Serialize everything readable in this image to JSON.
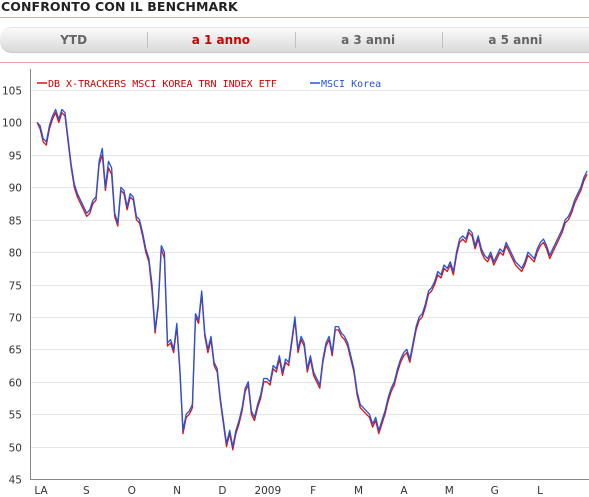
{
  "header": {
    "title": "CONFRONTO CON IL BENCHMARK"
  },
  "tabs": [
    {
      "label": "YTD",
      "active": false
    },
    {
      "label": "a 1 anno",
      "active": true
    },
    {
      "label": "a 3 anni",
      "active": false
    },
    {
      "label": "a 5 anni",
      "active": false
    }
  ],
  "colors": {
    "accent": "#cc0000",
    "etf": "#dd1111",
    "benchmark": "#2255dd"
  },
  "chart_data": {
    "type": "line",
    "title": "",
    "xlabel": "",
    "ylabel": "",
    "ylim": [
      45,
      105
    ],
    "yticks": [
      45,
      50,
      55,
      60,
      65,
      70,
      75,
      80,
      85,
      90,
      95,
      100,
      105
    ],
    "grid": true,
    "legend": "top-left",
    "xtick_labels": [
      "LA",
      "S",
      "O",
      "N",
      "D",
      "2009",
      "F",
      "M",
      "A",
      "M",
      "G",
      "L"
    ],
    "series": [
      {
        "name": "DB X-TRACKERS MSCI KOREA TRN INDEX ETF",
        "color": "#dd1111",
        "values": [
          100.0,
          99.0,
          97.0,
          96.5,
          99.0,
          100.5,
          101.5,
          100.0,
          101.5,
          101.0,
          97.0,
          93.0,
          90.0,
          88.5,
          87.5,
          86.5,
          85.5,
          86.0,
          87.5,
          88.0,
          93.5,
          95.0,
          89.5,
          93.0,
          92.0,
          85.5,
          84.0,
          89.5,
          89.0,
          86.5,
          88.5,
          88.0,
          85.0,
          84.5,
          82.5,
          80.0,
          78.5,
          74.0,
          67.5,
          71.5,
          80.5,
          79.0,
          65.5,
          66.0,
          64.5,
          68.5,
          61.5,
          52.0,
          54.5,
          55.0,
          56.0,
          70.0,
          69.0,
          73.5,
          67.0,
          64.5,
          66.5,
          62.5,
          61.5,
          57.0,
          53.5,
          50.0,
          52.0,
          49.5,
          52.0,
          53.5,
          55.5,
          58.5,
          59.5,
          55.0,
          54.0,
          56.0,
          57.5,
          60.0,
          60.0,
          59.5,
          62.0,
          61.5,
          63.5,
          61.0,
          63.0,
          62.5,
          66.0,
          69.5,
          64.5,
          66.5,
          65.5,
          61.5,
          63.5,
          61.0,
          60.0,
          59.0,
          63.0,
          65.5,
          66.5,
          64.0,
          68.0,
          68.0,
          67.0,
          66.5,
          65.5,
          63.5,
          61.5,
          58.0,
          56.0,
          55.5,
          55.0,
          54.5,
          53.0,
          54.0,
          52.0,
          53.5,
          55.0,
          57.0,
          58.5,
          59.5,
          61.5,
          63.0,
          64.0,
          64.5,
          63.0,
          65.5,
          68.0,
          69.5,
          70.0,
          71.5,
          73.5,
          74.0,
          75.0,
          76.5,
          76.0,
          77.5,
          77.0,
          78.0,
          76.5,
          79.5,
          81.5,
          82.0,
          81.5,
          83.0,
          82.5,
          80.5,
          82.0,
          80.0,
          79.0,
          78.5,
          79.5,
          78.0,
          79.0,
          80.0,
          79.5,
          81.0,
          80.0,
          79.0,
          78.0,
          77.5,
          77.0,
          78.0,
          79.5,
          79.0,
          78.5,
          80.0,
          81.0,
          81.5,
          80.5,
          79.0,
          80.0,
          81.0,
          82.0,
          83.0,
          84.5,
          85.0,
          86.0,
          87.5,
          88.5,
          89.5,
          91.0,
          92.0
        ]
      },
      {
        "name": "MSCI Korea",
        "color": "#2255dd",
        "values": [
          100.0,
          99.5,
          97.5,
          97.0,
          99.5,
          101.0,
          102.0,
          100.5,
          102.0,
          101.5,
          97.5,
          93.5,
          90.5,
          89.0,
          88.0,
          87.0,
          86.0,
          86.5,
          88.0,
          88.5,
          94.0,
          96.0,
          90.0,
          94.0,
          93.0,
          86.0,
          84.5,
          90.0,
          89.5,
          87.0,
          89.0,
          88.5,
          85.5,
          85.0,
          83.0,
          80.5,
          79.0,
          75.0,
          68.0,
          72.0,
          81.0,
          80.0,
          66.0,
          66.5,
          65.0,
          69.0,
          62.0,
          52.5,
          55.0,
          55.5,
          56.5,
          70.5,
          69.5,
          74.0,
          67.5,
          65.0,
          67.0,
          63.0,
          62.0,
          57.5,
          54.0,
          50.5,
          52.5,
          50.0,
          52.5,
          54.0,
          56.0,
          59.0,
          60.0,
          55.5,
          54.5,
          56.5,
          58.0,
          60.5,
          60.5,
          60.0,
          62.5,
          62.0,
          64.0,
          61.5,
          63.5,
          63.0,
          66.5,
          70.0,
          65.0,
          67.0,
          66.0,
          62.0,
          64.0,
          61.5,
          60.5,
          59.5,
          63.5,
          66.0,
          67.0,
          64.5,
          68.5,
          68.5,
          67.5,
          67.0,
          66.0,
          64.0,
          62.0,
          58.5,
          56.5,
          56.0,
          55.5,
          55.0,
          53.5,
          54.5,
          52.5,
          54.0,
          55.5,
          57.5,
          59.0,
          60.0,
          62.0,
          63.5,
          64.5,
          65.0,
          63.5,
          66.0,
          68.5,
          70.0,
          70.5,
          72.0,
          74.0,
          74.5,
          75.5,
          77.0,
          76.5,
          78.0,
          77.5,
          78.5,
          77.0,
          80.0,
          82.0,
          82.5,
          82.0,
          83.5,
          83.0,
          81.0,
          82.5,
          80.5,
          79.5,
          79.0,
          80.0,
          78.5,
          79.5,
          80.5,
          80.0,
          81.5,
          80.5,
          79.5,
          78.5,
          78.0,
          77.5,
          78.5,
          80.0,
          79.5,
          79.0,
          80.5,
          81.5,
          82.0,
          81.0,
          79.5,
          80.5,
          81.5,
          82.5,
          83.5,
          85.0,
          85.5,
          86.5,
          88.0,
          89.0,
          90.0,
          91.5,
          92.5
        ]
      }
    ]
  }
}
